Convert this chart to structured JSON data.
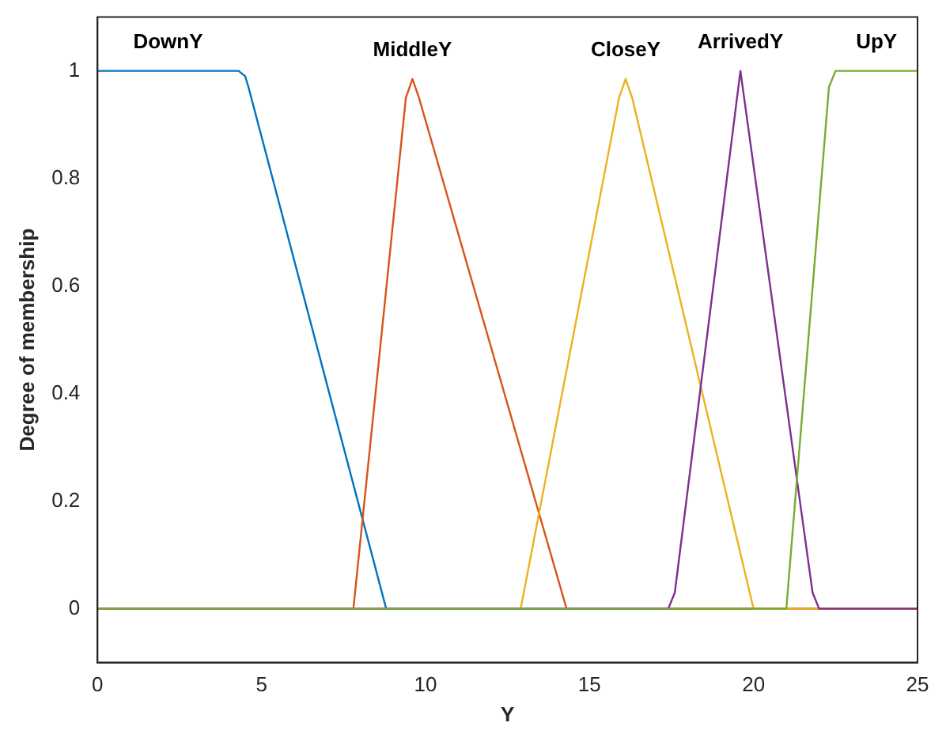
{
  "chart_data": {
    "type": "line",
    "xlabel": "Y",
    "ylabel": "Degree of membership",
    "xlim": [
      0,
      25
    ],
    "xticks": [
      0,
      5,
      10,
      15,
      20,
      25
    ],
    "ylim": [
      -0.1,
      1.1
    ],
    "yticks": [
      0,
      0.2,
      0.4,
      0.6,
      0.8,
      1
    ],
    "grid": false,
    "legend": false,
    "marker": "none",
    "line_style": "solid",
    "series": [
      {
        "name": "DownY",
        "color": "#0072bd",
        "x": [
          0,
          4.3,
          4.5,
          4.6,
          8.8,
          25
        ],
        "values": [
          1,
          1,
          0.99,
          0.97,
          0,
          0
        ]
      },
      {
        "name": "MiddleY",
        "color": "#d95319",
        "x": [
          0,
          7.8,
          9.4,
          9.6,
          9.8,
          14.3,
          25
        ],
        "values": [
          0,
          0,
          0.95,
          0.985,
          0.95,
          0,
          0
        ]
      },
      {
        "name": "CloseY",
        "color": "#edb120",
        "x": [
          0,
          12.9,
          15.9,
          16.1,
          16.3,
          20,
          25
        ],
        "values": [
          0,
          0,
          0.95,
          0.985,
          0.95,
          0,
          0
        ]
      },
      {
        "name": "ArrivedY",
        "color": "#7e2f8e",
        "x": [
          0,
          17.4,
          17.6,
          19.6,
          21.8,
          22,
          25
        ],
        "values": [
          0,
          0,
          0.03,
          1,
          0.03,
          0,
          0
        ]
      },
      {
        "name": "UpY",
        "color": "#77ac30",
        "x": [
          0,
          21,
          22.3,
          22.5,
          25
        ],
        "values": [
          0,
          0,
          0.97,
          1,
          1
        ]
      }
    ]
  }
}
